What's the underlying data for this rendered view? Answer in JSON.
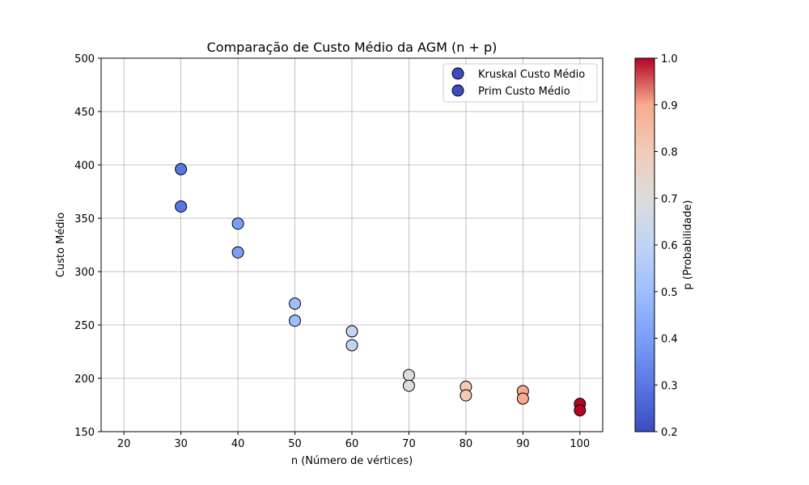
{
  "chart_data": {
    "type": "scatter",
    "title": "Comparação de Custo Médio da AGM (n + p)",
    "xlabel": "n (Número de vértices)",
    "ylabel": "Custo Médio",
    "xlim": [
      16,
      104
    ],
    "ylim": [
      150,
      500
    ],
    "xticks": [
      20,
      30,
      40,
      50,
      60,
      70,
      80,
      90,
      100
    ],
    "yticks": [
      150,
      200,
      250,
      300,
      350,
      400,
      450,
      500
    ],
    "grid": true,
    "legend_position": "top-right",
    "series": [
      {
        "name": "Kruskal Custo Médio",
        "points": [
          {
            "x": 30,
            "y": 396,
            "p": 0.3
          },
          {
            "x": 40,
            "y": 345,
            "p": 0.4
          },
          {
            "x": 50,
            "y": 270,
            "p": 0.5
          },
          {
            "x": 60,
            "y": 244,
            "p": 0.6
          },
          {
            "x": 70,
            "y": 203,
            "p": 0.7
          },
          {
            "x": 80,
            "y": 192,
            "p": 0.8
          },
          {
            "x": 90,
            "y": 188,
            "p": 0.9
          },
          {
            "x": 100,
            "y": 176,
            "p": 1.0
          }
        ]
      },
      {
        "name": "Prim Custo Médio",
        "points": [
          {
            "x": 30,
            "y": 361,
            "p": 0.3
          },
          {
            "x": 40,
            "y": 318,
            "p": 0.4
          },
          {
            "x": 50,
            "y": 254,
            "p": 0.5
          },
          {
            "x": 60,
            "y": 231,
            "p": 0.6
          },
          {
            "x": 70,
            "y": 193,
            "p": 0.7
          },
          {
            "x": 80,
            "y": 184,
            "p": 0.8
          },
          {
            "x": 90,
            "y": 181,
            "p": 0.9
          },
          {
            "x": 100,
            "y": 170,
            "p": 1.0
          }
        ]
      }
    ],
    "legend_marker_color": "#3b4cc0",
    "colorbar": {
      "label": "p (Probabilidade)",
      "colormap": "coolwarm",
      "range": [
        0.2,
        1.0
      ],
      "ticks": [
        0.2,
        0.3,
        0.4,
        0.5,
        0.6,
        0.7,
        0.8,
        0.9,
        1.0
      ]
    }
  }
}
